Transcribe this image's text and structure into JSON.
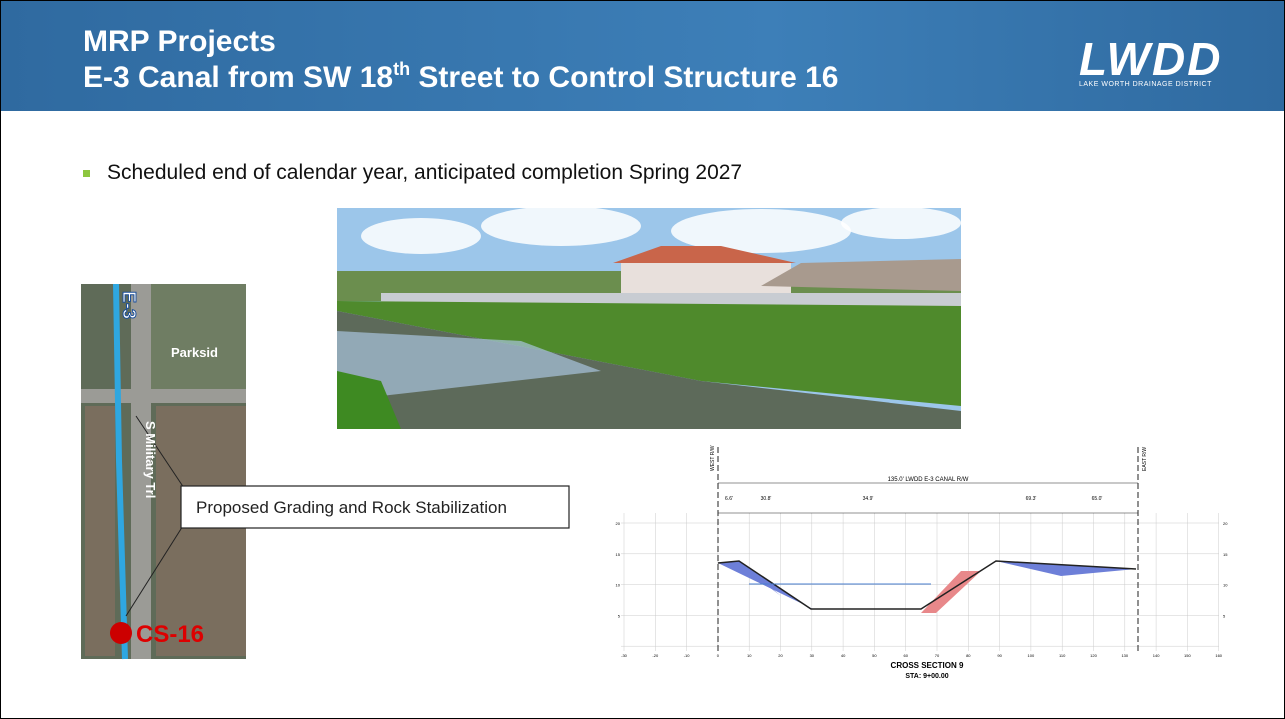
{
  "header": {
    "title_line1": "MRP Projects",
    "title_line2_pre": "E-3 Canal from SW 18",
    "title_line2_sup": "th",
    "title_line2_post": " Street to Control Structure 16",
    "logo": "LWDD",
    "logo_subtitle": "LAKE WORTH DRAINAGE DISTRICT"
  },
  "bullets": [
    "Scheduled end of calendar year, anticipated completion Spring 2027"
  ],
  "map": {
    "canal_label": "E-3",
    "street_label": "Parksid",
    "road_label": "S Military Trl",
    "structure_label": "CS-16",
    "callout": "Proposed Grading and Rock Stabilization"
  },
  "cross_section": {
    "row_label": "135.0' LWDD E-3 CANAL R/W",
    "west": "WEST R/W",
    "east": "EAST R/W",
    "dims": [
      "6.6'",
      "30.8'",
      "34.9'",
      "69.3'",
      "65.0'"
    ],
    "x_labels": [
      "-30",
      "-20",
      "-10",
      "0",
      "10",
      "20",
      "30",
      "40",
      "50",
      "60",
      "70",
      "80",
      "90",
      "100",
      "110",
      "120",
      "130",
      "140",
      "150",
      "160"
    ],
    "y_labels": [
      "20",
      "15",
      "10",
      "5"
    ],
    "title": "CROSS SECTION 9",
    "station": "STA: 9+00.00"
  }
}
